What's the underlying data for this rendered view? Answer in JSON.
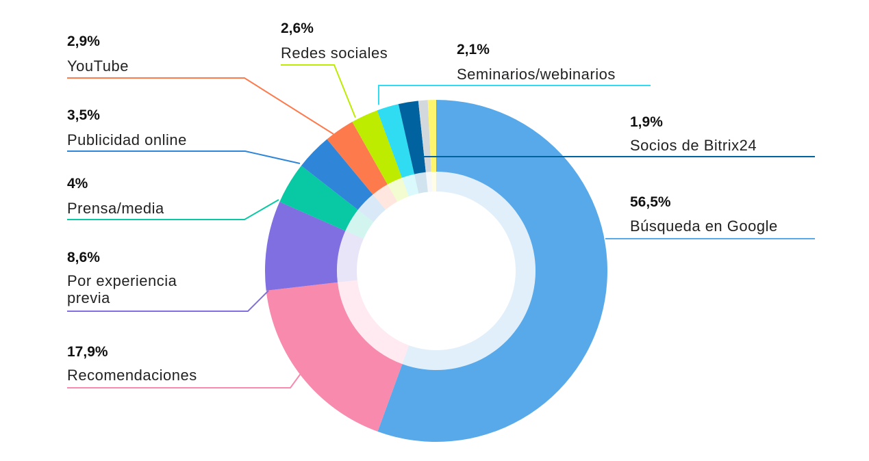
{
  "chart_data": {
    "type": "pie",
    "style": "donut",
    "slices": [
      {
        "label": "Búsqueda en Google",
        "value": 56.5,
        "display": "56,5%",
        "color": "#58a9e9"
      },
      {
        "label": "Recomendaciones",
        "value": 17.9,
        "display": "17,9%",
        "color": "#f78aad"
      },
      {
        "label": "Por experiencia previa",
        "value": 8.6,
        "display": "8,6%",
        "color": "#7f6fe0"
      },
      {
        "label": "Prensa/media",
        "value": 4,
        "display": "4%",
        "color": "#09c8a4"
      },
      {
        "label": "Publicidad online",
        "value": 3.5,
        "display": "3,5%",
        "color": "#2f86d8"
      },
      {
        "label": "YouTube",
        "value": 2.9,
        "display": "2,9%",
        "color": "#fd7a4d"
      },
      {
        "label": "Redes sociales",
        "value": 2.6,
        "display": "2,6%",
        "color": "#bdec00"
      },
      {
        "label": "Seminarios/webinarios",
        "value": 2.1,
        "display": "2,1%",
        "color": "#2fdcf2"
      },
      {
        "label": "Socios de Bitrix24",
        "value": 1.9,
        "display": "1,9%",
        "color": "#00629e"
      },
      {
        "label": "",
        "value": 0.9,
        "display": "",
        "color": "#d3d8dc"
      },
      {
        "label": "",
        "value": 0.8,
        "display": "",
        "color": "#fdf56e"
      }
    ],
    "legend_placement": "callouts"
  }
}
